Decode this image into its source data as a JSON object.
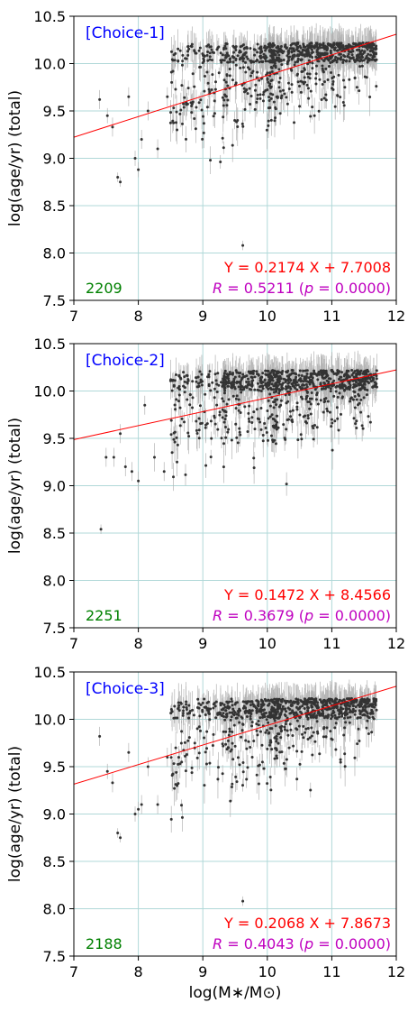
{
  "colors": {
    "scatter": "#333333",
    "errorbar": "#b3b3b3",
    "fit_line": "#ff0000",
    "grid": "#b0d8d8",
    "choice_tag": "#0000ff",
    "count": "#008000",
    "fit_text": "#ff0000",
    "corr_text": "#bf00bf"
  },
  "chart_data": [
    {
      "type": "scatter",
      "tag": "[Choice-1]",
      "count": "2209",
      "fit_text": "Y = 0.2174 X + 7.7008",
      "corr": {
        "r_sym": "R",
        "r_eq": " = 0.5211 (",
        "p_sym": "p",
        "p_eq": " = 0.0000)"
      },
      "fit": {
        "slope": 0.2174,
        "intercept": 7.7008
      },
      "xlim": [
        7,
        12
      ],
      "ylim": [
        7.5,
        10.5
      ],
      "x_ticks": [
        "7",
        "8",
        "9",
        "10",
        "11",
        "12"
      ],
      "y_ticks": [
        "7.5",
        "8.0",
        "8.5",
        "9.0",
        "9.5",
        "10.0",
        "10.5"
      ],
      "xlabel": "",
      "ylabel": "log(age/yr) (total)",
      "grid": true,
      "points": [
        [
          7.4,
          9.62,
          0.1
        ],
        [
          7.52,
          9.45,
          0.08
        ],
        [
          7.6,
          9.33,
          0.1
        ],
        [
          7.68,
          8.8,
          0.05
        ],
        [
          7.72,
          8.75,
          0.05
        ],
        [
          7.85,
          9.65,
          0.1
        ],
        [
          7.95,
          9.0,
          0.08
        ],
        [
          8.0,
          8.88,
          0.08
        ],
        [
          8.05,
          9.2,
          0.1
        ],
        [
          8.15,
          9.5,
          0.1
        ],
        [
          8.3,
          9.1,
          0.1
        ],
        [
          8.45,
          9.65,
          0.1
        ],
        [
          8.6,
          9.3,
          0.15
        ],
        [
          9.62,
          8.08,
          0.05
        ]
      ],
      "cloud_seed": 11,
      "cloud_n": 900
    },
    {
      "type": "scatter",
      "tag": "[Choice-2]",
      "count": "2251",
      "fit_text": "Y = 0.1472 X + 8.4566",
      "corr": {
        "r_sym": "R",
        "r_eq": " = 0.3679 (",
        "p_sym": "p",
        "p_eq": " = 0.0000)"
      },
      "fit": {
        "slope": 0.1472,
        "intercept": 8.4566
      },
      "xlim": [
        7,
        12
      ],
      "ylim": [
        7.5,
        10.5
      ],
      "x_ticks": [
        "7",
        "8",
        "9",
        "10",
        "11",
        "12"
      ],
      "y_ticks": [
        "7.5",
        "8.0",
        "8.5",
        "9.0",
        "9.5",
        "10.0",
        "10.5"
      ],
      "xlabel": "",
      "ylabel": "log(age/yr) (total)",
      "grid": true,
      "points": [
        [
          7.42,
          8.54,
          0.05
        ],
        [
          7.5,
          9.3,
          0.1
        ],
        [
          7.62,
          9.3,
          0.1
        ],
        [
          7.72,
          9.55,
          0.1
        ],
        [
          7.8,
          9.2,
          0.1
        ],
        [
          7.9,
          9.15,
          0.1
        ],
        [
          8.0,
          9.05,
          0.1
        ],
        [
          8.1,
          9.85,
          0.1
        ],
        [
          8.25,
          9.3,
          0.15
        ],
        [
          8.4,
          9.15,
          0.1
        ],
        [
          8.6,
          9.25,
          0.15
        ],
        [
          11.6,
          9.67,
          0.1
        ]
      ],
      "cloud_seed": 23,
      "cloud_n": 900
    },
    {
      "type": "scatter",
      "tag": "[Choice-3]",
      "count": "2188",
      "fit_text": "Y = 0.2068 X + 7.8673",
      "corr": {
        "r_sym": "R",
        "r_eq": " = 0.4043 (",
        "p_sym": "p",
        "p_eq": " = 0.0000)"
      },
      "fit": {
        "slope": 0.2068,
        "intercept": 7.8673
      },
      "xlim": [
        7,
        12
      ],
      "ylim": [
        7.5,
        10.5
      ],
      "x_ticks": [
        "7",
        "8",
        "9",
        "10",
        "11",
        "12"
      ],
      "y_ticks": [
        "7.5",
        "8.0",
        "8.5",
        "9.0",
        "9.5",
        "10.0",
        "10.5"
      ],
      "xlabel": "log(M∗/M⊙)",
      "ylabel": "log(age/yr) (total)",
      "grid": true,
      "points": [
        [
          7.4,
          9.82,
          0.1
        ],
        [
          7.52,
          9.45,
          0.08
        ],
        [
          7.6,
          9.33,
          0.1
        ],
        [
          7.68,
          8.8,
          0.05
        ],
        [
          7.72,
          8.75,
          0.05
        ],
        [
          7.85,
          9.65,
          0.1
        ],
        [
          7.95,
          9.0,
          0.08
        ],
        [
          8.0,
          9.05,
          0.08
        ],
        [
          8.05,
          9.1,
          0.1
        ],
        [
          8.15,
          9.5,
          0.1
        ],
        [
          8.3,
          9.1,
          0.1
        ],
        [
          8.45,
          9.6,
          0.1
        ],
        [
          8.6,
          9.3,
          0.15
        ],
        [
          9.62,
          8.08,
          0.05
        ]
      ],
      "cloud_seed": 37,
      "cloud_n": 900
    }
  ]
}
